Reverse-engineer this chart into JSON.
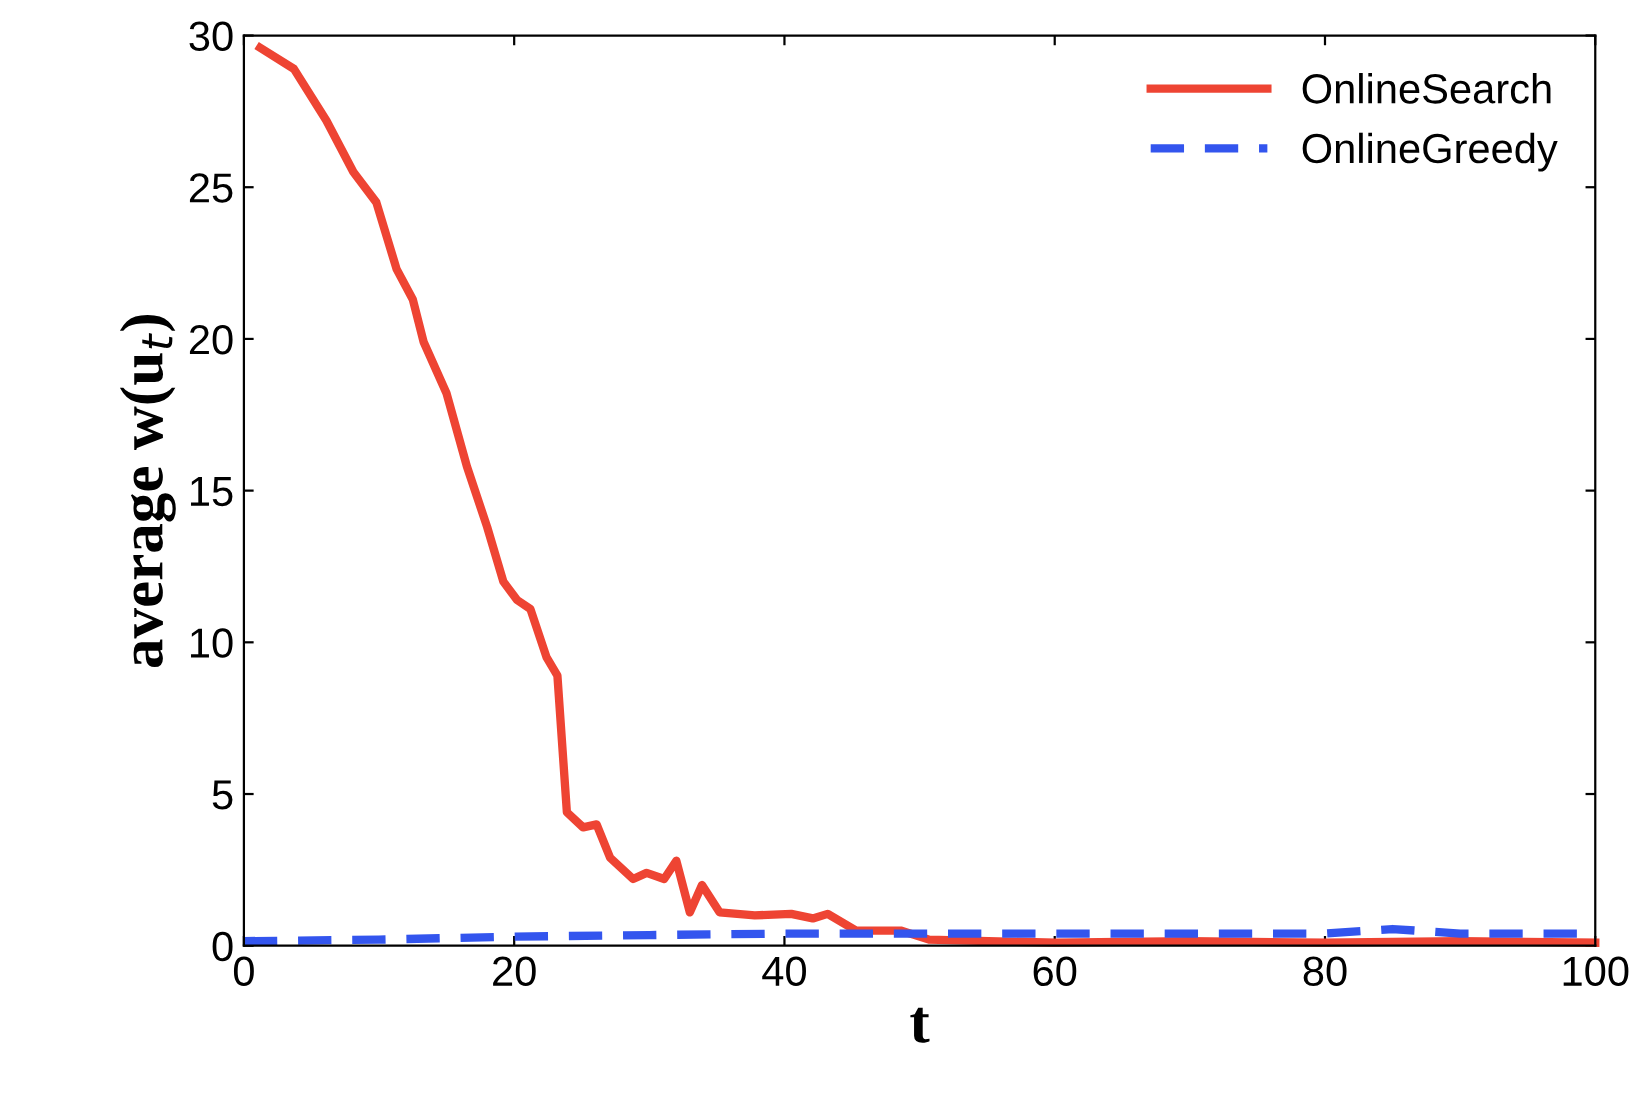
{
  "chart_data": {
    "type": "line",
    "xlabel": "t",
    "ylabel": "average w(u$_{t}$)",
    "xlim": [
      0,
      100
    ],
    "ylim": [
      0,
      30
    ],
    "xticks": [
      0,
      20,
      40,
      60,
      80,
      100
    ],
    "yticks": [
      0,
      5,
      10,
      15,
      20,
      25,
      30
    ],
    "grid": false,
    "legend": "top right",
    "series": [
      {
        "name": "OnlineSearch",
        "color": "#ee4433",
        "line_style": "solid",
        "x": [
          1.2,
          3.7,
          6.1,
          8.1,
          9.8,
          11.3,
          12.5,
          13.3,
          15,
          16.5,
          18,
          19.2,
          20.2,
          21.2,
          22.4,
          23.2,
          23.9,
          25.1,
          26.1,
          27.1,
          28.8,
          29.8,
          31.1,
          32,
          33,
          33.9,
          35.2,
          37.8,
          40.5,
          42.1,
          43.2,
          45.3,
          48.6,
          50.7,
          60,
          70,
          80,
          90,
          100
        ],
        "values": [
          29.6,
          28.9,
          27.2,
          25.5,
          24.5,
          22.3,
          21.3,
          19.9,
          18.2,
          15.8,
          13.8,
          12,
          11.4,
          11.1,
          9.5,
          8.9,
          4.4,
          3.9,
          4,
          2.9,
          2.2,
          2.4,
          2.2,
          2.8,
          1.1,
          2,
          1.1,
          1,
          1.05,
          0.9,
          1.05,
          0.5,
          0.5,
          0.2,
          0.1,
          0.15,
          0.1,
          0.15,
          0.1
        ]
      },
      {
        "name": "OnlineGreedy",
        "color": "#3355ee",
        "line_style": "dashed",
        "x": [
          0,
          10,
          20,
          30,
          40,
          50,
          60,
          70,
          80,
          85,
          90,
          100
        ],
        "values": [
          0.15,
          0.2,
          0.3,
          0.35,
          0.4,
          0.4,
          0.4,
          0.4,
          0.4,
          0.55,
          0.4,
          0.4
        ]
      }
    ]
  }
}
